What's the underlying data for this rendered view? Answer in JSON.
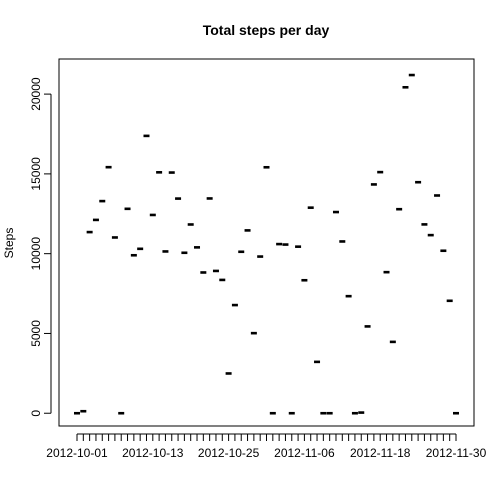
{
  "chart_data": {
    "type": "scatter",
    "title": "Total steps per day",
    "xlabel": "",
    "ylabel": "Steps",
    "ylim": [
      -800,
      22200
    ],
    "yticks": [
      0,
      5000,
      10000,
      15000,
      20000
    ],
    "x_tick_labels": [
      "2012-10-01",
      "2012-10-13",
      "2012-10-25",
      "2012-11-06",
      "2012-11-18",
      "2012-11-30"
    ],
    "grid": false,
    "legend": "none",
    "marker_color": "#000000",
    "x": [
      "2012-10-01",
      "2012-10-02",
      "2012-10-03",
      "2012-10-04",
      "2012-10-05",
      "2012-10-06",
      "2012-10-07",
      "2012-10-08",
      "2012-10-09",
      "2012-10-10",
      "2012-10-11",
      "2012-10-12",
      "2012-10-13",
      "2012-10-14",
      "2012-10-15",
      "2012-10-16",
      "2012-10-17",
      "2012-10-18",
      "2012-10-19",
      "2012-10-20",
      "2012-10-21",
      "2012-10-22",
      "2012-10-23",
      "2012-10-24",
      "2012-10-25",
      "2012-10-26",
      "2012-10-27",
      "2012-10-28",
      "2012-10-29",
      "2012-10-30",
      "2012-10-31",
      "2012-11-01",
      "2012-11-02",
      "2012-11-03",
      "2012-11-04",
      "2012-11-05",
      "2012-11-06",
      "2012-11-07",
      "2012-11-08",
      "2012-11-09",
      "2012-11-10",
      "2012-11-11",
      "2012-11-12",
      "2012-11-13",
      "2012-11-14",
      "2012-11-15",
      "2012-11-16",
      "2012-11-17",
      "2012-11-18",
      "2012-11-19",
      "2012-11-20",
      "2012-11-21",
      "2012-11-22",
      "2012-11-23",
      "2012-11-24",
      "2012-11-25",
      "2012-11-26",
      "2012-11-27",
      "2012-11-28",
      "2012-11-29",
      "2012-11-30"
    ],
    "y": [
      0,
      126,
      11352,
      12116,
      13294,
      15420,
      11015,
      0,
      12811,
      9900,
      10304,
      17382,
      12426,
      15098,
      10139,
      15084,
      13452,
      10056,
      11829,
      10395,
      8821,
      13460,
      8918,
      8355,
      2492,
      6778,
      10119,
      11458,
      5018,
      9819,
      15414,
      0,
      10600,
      10571,
      0,
      10439,
      8334,
      12883,
      3219,
      0,
      0,
      12608,
      10765,
      7336,
      0,
      41,
      5441,
      14339,
      15110,
      8841,
      4472,
      12787,
      20427,
      21194,
      14478,
      11834,
      11162,
      13646,
      10183,
      7047,
      0
    ]
  }
}
